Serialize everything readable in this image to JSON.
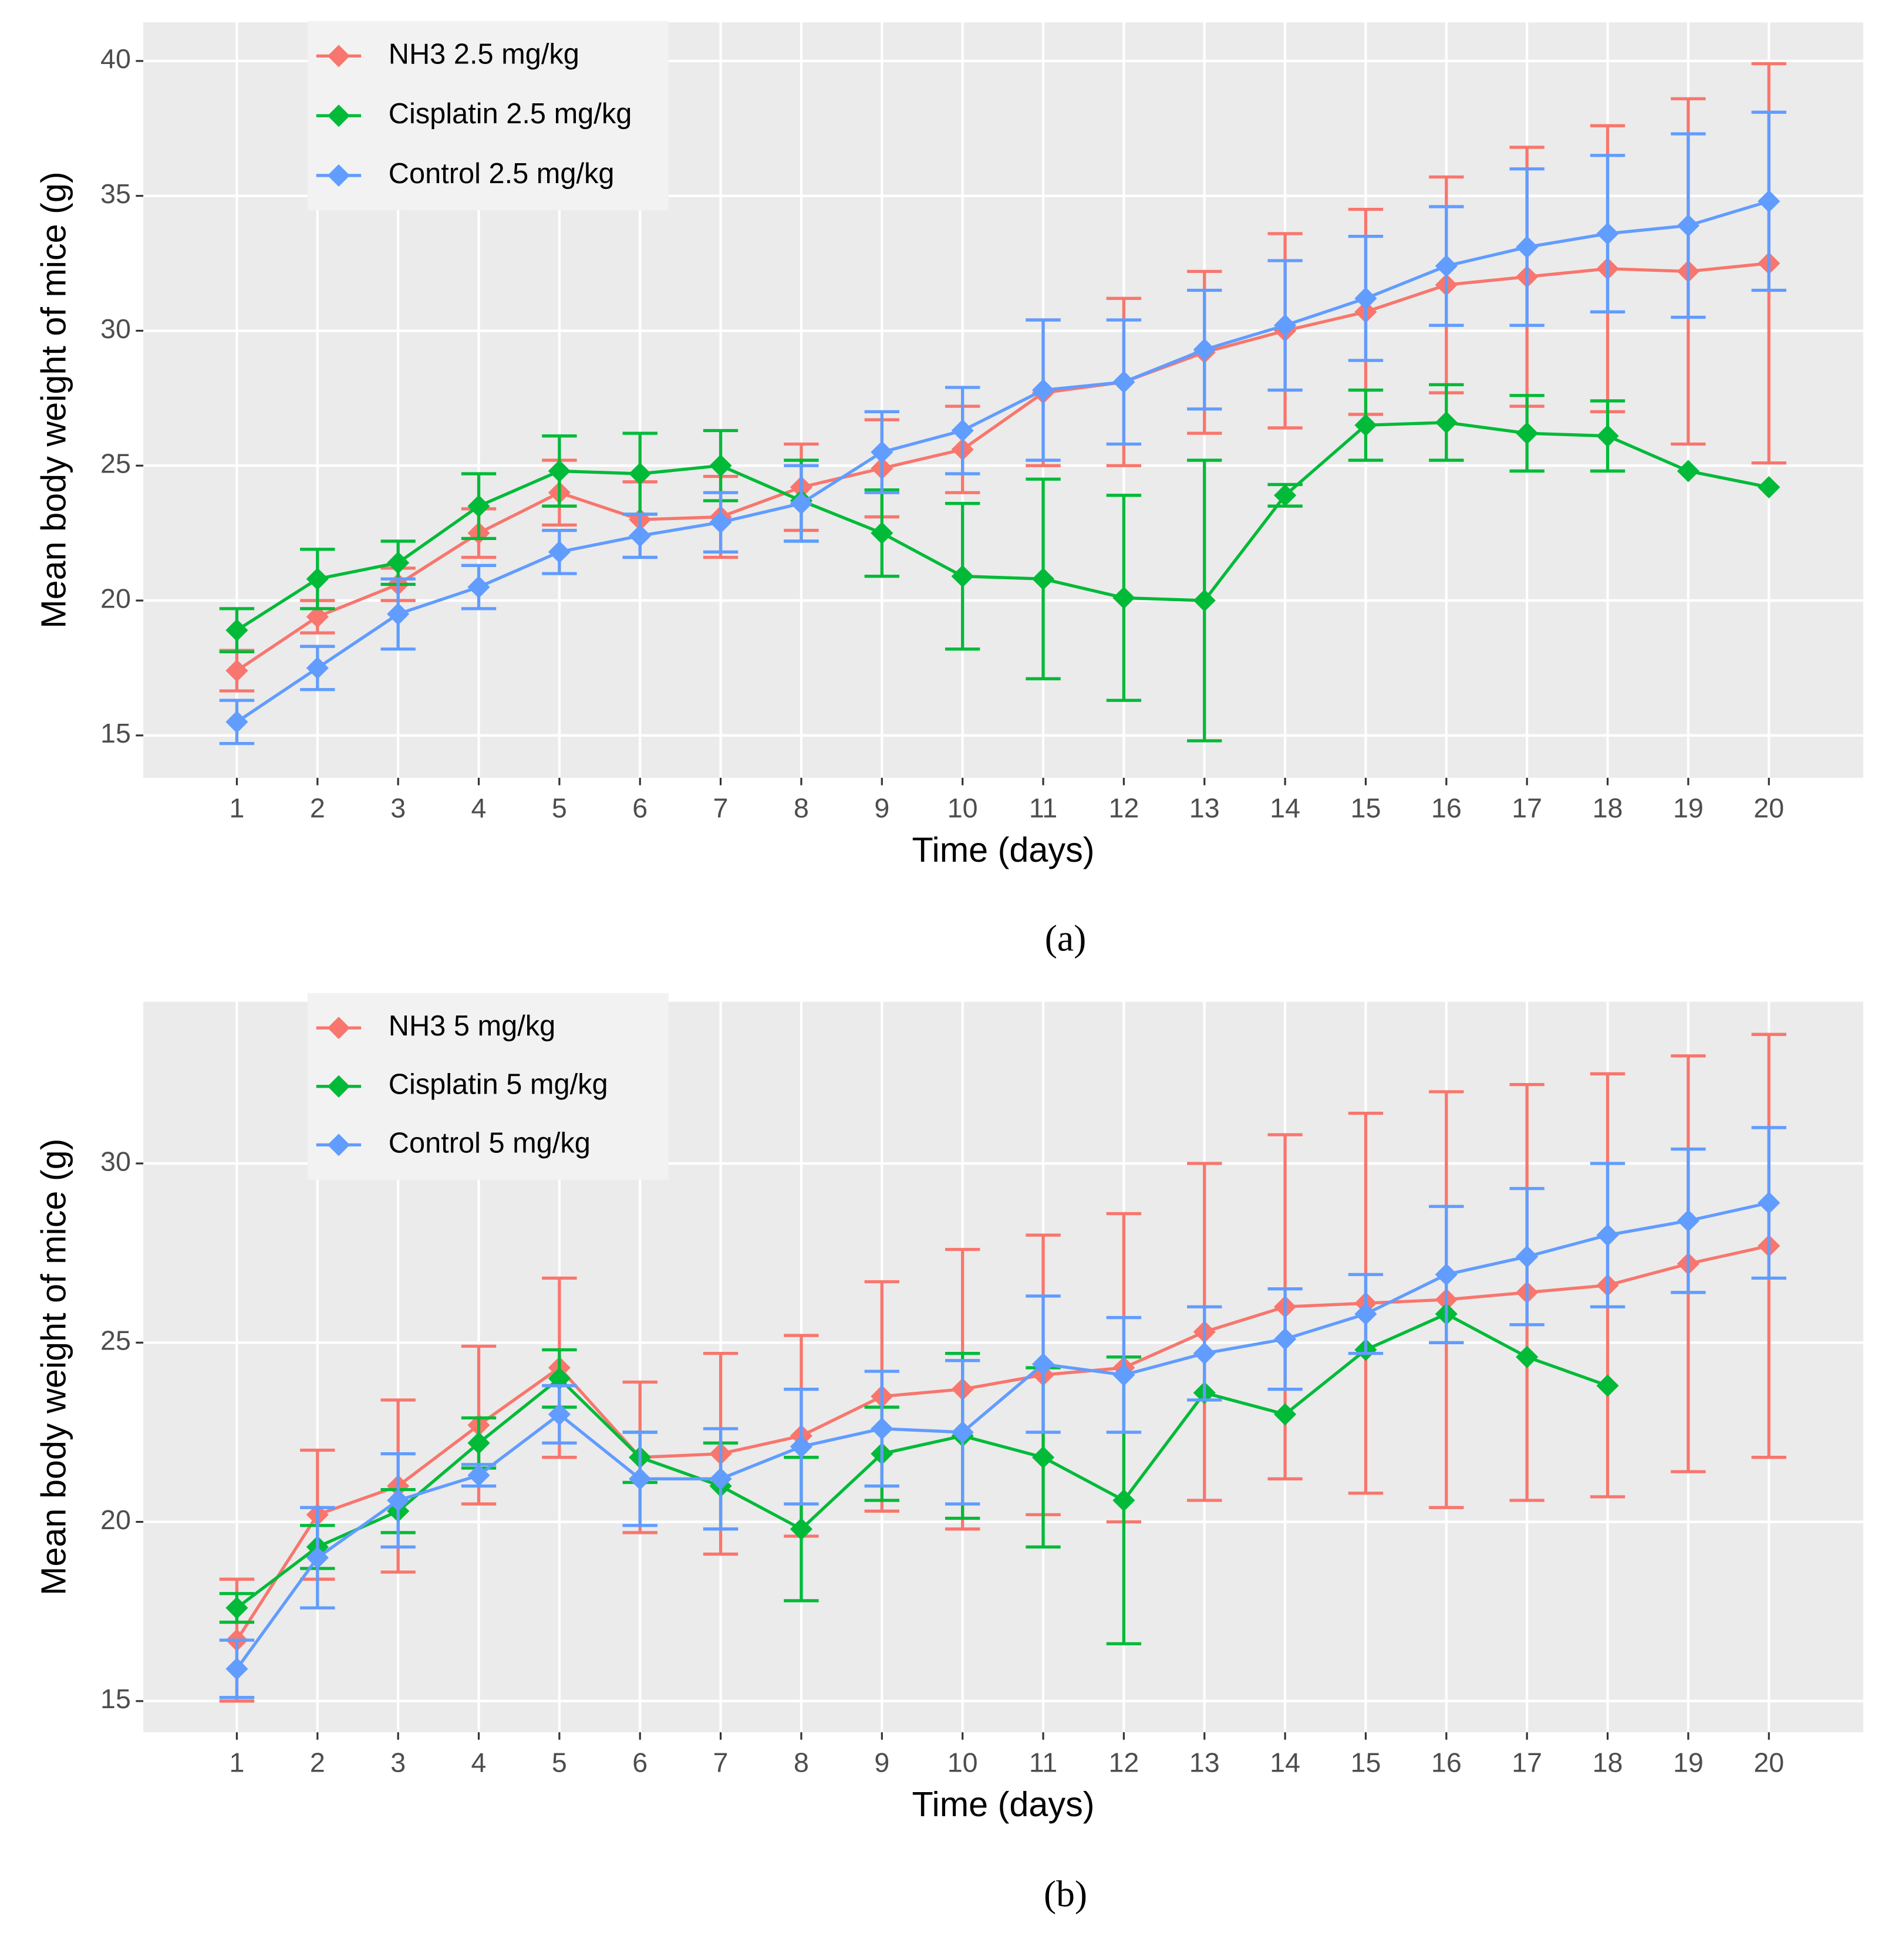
{
  "chart_data": [
    {
      "type": "line",
      "caption": "(a)",
      "x_label": "Time (days)",
      "y_label": "Mean body weight of mice (g)",
      "x": [
        1,
        2,
        3,
        4,
        5,
        6,
        7,
        8,
        9,
        10,
        11,
        12,
        13,
        14,
        15,
        16,
        17,
        18,
        19,
        20
      ],
      "xlim": [
        -0.16,
        21.17
      ],
      "xticks": [
        1,
        2,
        3,
        4,
        5,
        6,
        7,
        8,
        9,
        10,
        11,
        12,
        13,
        14,
        15,
        16,
        17,
        18,
        19,
        20
      ],
      "ylim": [
        13.43,
        41.43
      ],
      "yticks": [
        15,
        20,
        25,
        30,
        35,
        40
      ],
      "grid": true,
      "legend": "top-left",
      "series": [
        {
          "name": "NH3 2.5 mg/kg",
          "color": "#F8766D",
          "values": [
            17.4,
            19.4,
            20.6,
            22.5,
            24.0,
            23.0,
            23.1,
            24.2,
            24.9,
            25.6,
            27.7,
            28.1,
            29.2,
            30.0,
            30.7,
            31.7,
            32.0,
            32.3,
            32.2,
            32.5
          ],
          "errors": [
            0.75,
            0.6,
            0.6,
            0.9,
            1.2,
            1.4,
            1.5,
            1.6,
            1.8,
            1.6,
            2.7,
            3.1,
            3.0,
            3.6,
            3.8,
            4.0,
            4.8,
            5.3,
            6.4,
            7.4
          ]
        },
        {
          "name": "Cisplatin 2.5 mg/kg",
          "color": "#00BA38",
          "values": [
            18.9,
            20.8,
            21.4,
            23.5,
            24.8,
            24.7,
            25.0,
            23.7,
            22.5,
            20.9,
            20.8,
            20.1,
            20.0,
            23.9,
            26.5,
            26.6,
            26.2,
            26.1,
            24.8,
            24.2
          ],
          "errors": [
            0.8,
            1.1,
            0.8,
            1.2,
            1.3,
            1.5,
            1.3,
            1.5,
            1.6,
            2.7,
            3.7,
            3.8,
            5.2,
            0.4,
            1.3,
            1.4,
            1.4,
            1.3,
            null,
            null
          ]
        },
        {
          "name": "Control 2.5 mg/kg",
          "color": "#619CFF",
          "values": [
            15.5,
            17.5,
            19.5,
            20.5,
            21.8,
            22.4,
            22.9,
            23.6,
            25.5,
            26.3,
            27.8,
            28.1,
            29.3,
            30.2,
            31.2,
            32.4,
            33.1,
            33.6,
            33.9,
            34.8
          ],
          "errors": [
            0.8,
            0.8,
            1.3,
            0.8,
            0.8,
            0.8,
            1.1,
            1.4,
            1.5,
            1.6,
            2.6,
            2.3,
            2.2,
            2.4,
            2.3,
            2.2,
            2.9,
            2.9,
            3.4,
            3.3
          ]
        }
      ]
    },
    {
      "type": "line",
      "caption": "(b)",
      "x_label": "Time (days)",
      "y_label": "Mean body weight of mice (g)",
      "x": [
        1,
        2,
        3,
        4,
        5,
        6,
        7,
        8,
        9,
        10,
        11,
        12,
        13,
        14,
        15,
        16,
        17,
        18,
        19,
        20
      ],
      "xlim": [
        -0.16,
        21.17
      ],
      "xticks": [
        1,
        2,
        3,
        4,
        5,
        6,
        7,
        8,
        9,
        10,
        11,
        12,
        13,
        14,
        15,
        16,
        17,
        18,
        19,
        20
      ],
      "ylim": [
        14.13,
        34.51
      ],
      "yticks": [
        15,
        20,
        25,
        30
      ],
      "grid": true,
      "legend": "top-left",
      "series": [
        {
          "name": "NH3 5 mg/kg",
          "color": "#F8766D",
          "values": [
            16.7,
            20.2,
            21.0,
            22.7,
            24.3,
            21.8,
            21.9,
            22.4,
            23.5,
            23.7,
            24.1,
            24.3,
            25.3,
            26.0,
            26.1,
            26.2,
            26.4,
            26.6,
            27.2,
            27.7
          ],
          "errors": [
            1.7,
            1.8,
            2.4,
            2.2,
            2.5,
            2.1,
            2.8,
            2.8,
            3.2,
            3.9,
            3.9,
            4.3,
            4.7,
            4.8,
            5.3,
            5.8,
            5.8,
            5.9,
            5.8,
            5.9
          ]
        },
        {
          "name": "Cisplatin 5 mg/kg",
          "color": "#00BA38",
          "values": [
            17.6,
            19.3,
            20.3,
            22.2,
            24.0,
            21.8,
            21.0,
            19.8,
            21.9,
            22.4,
            21.8,
            20.6,
            23.6,
            23.0,
            24.8,
            25.8,
            24.6,
            23.8,
            null,
            null
          ],
          "errors": [
            0.4,
            0.6,
            0.6,
            0.7,
            0.8,
            0.7,
            1.2,
            2.0,
            1.3,
            2.3,
            2.5,
            4.0,
            null,
            null,
            null,
            null,
            null,
            null,
            null,
            null
          ]
        },
        {
          "name": "Control 5 mg/kg",
          "color": "#619CFF",
          "values": [
            15.9,
            19.0,
            20.6,
            21.3,
            23.0,
            21.2,
            21.2,
            22.1,
            22.6,
            22.5,
            24.4,
            24.1,
            24.7,
            25.1,
            25.8,
            26.9,
            27.4,
            28.0,
            28.4,
            28.9
          ],
          "errors": [
            0.8,
            1.4,
            1.3,
            0.3,
            0.8,
            1.3,
            1.4,
            1.6,
            1.6,
            2.0,
            1.9,
            1.6,
            1.3,
            1.4,
            1.1,
            1.9,
            1.9,
            2.0,
            2.0,
            2.1
          ]
        }
      ]
    }
  ]
}
